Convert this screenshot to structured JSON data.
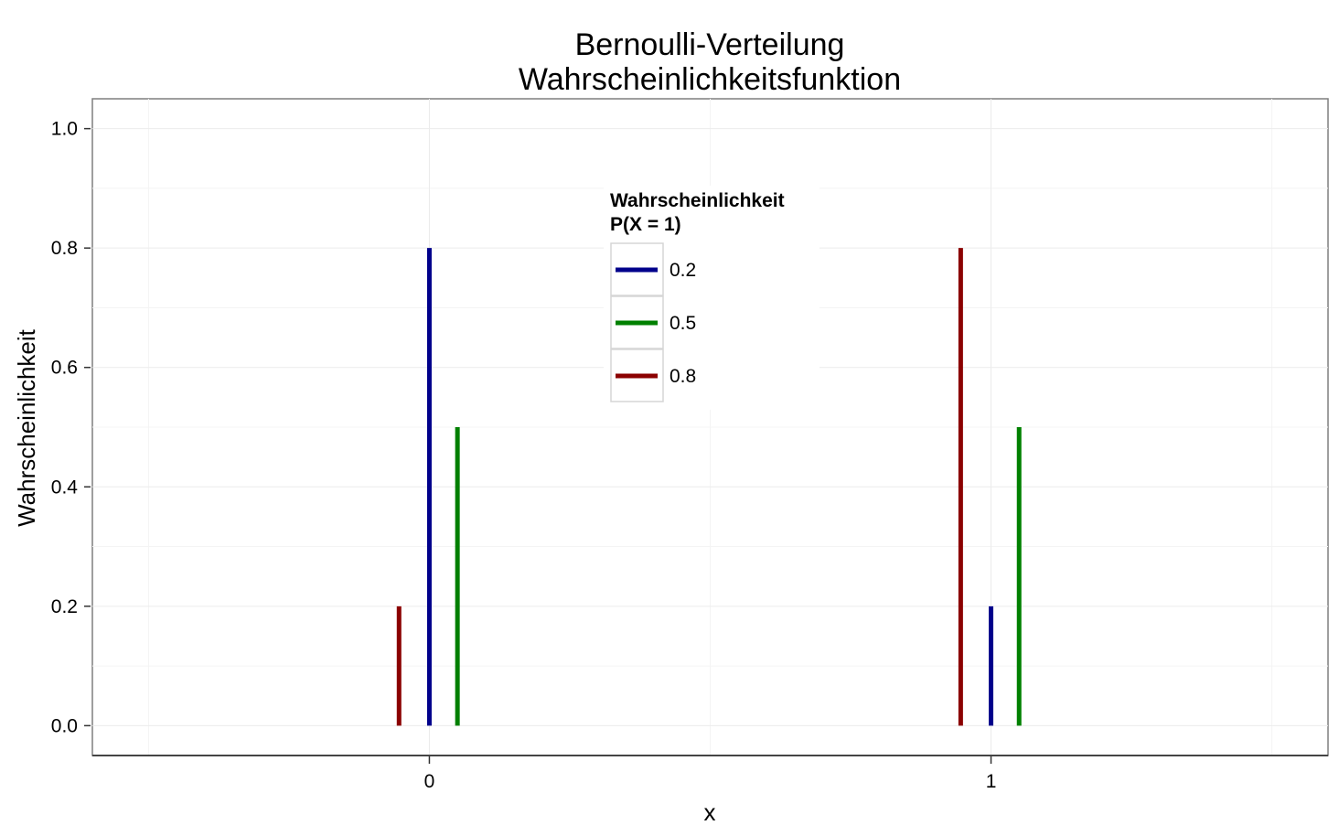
{
  "chart_data": {
    "type": "bar",
    "title": "Bernoulli-Verteilung",
    "subtitle": "Wahrscheinlichkeitsfunktion",
    "xlabel": "x",
    "ylabel": "Wahrscheinlichkeit",
    "xlim": [
      -0.6,
      1.6
    ],
    "ylim": [
      -0.05,
      1.05
    ],
    "x_ticks": [
      "0",
      "1"
    ],
    "x_tick_values": [
      0,
      1
    ],
    "y_ticks": [
      "0.0",
      "0.2",
      "0.4",
      "0.6",
      "0.8",
      "1.0"
    ],
    "y_tick_values": [
      0,
      0.2,
      0.4,
      0.6,
      0.8,
      1.0
    ],
    "grid": true,
    "legend": {
      "title_line1": "Wahrscheinlichkeit",
      "title_line2": "P(X = 1)",
      "placement": "top-center"
    },
    "series": [
      {
        "name": "0.2",
        "color": "#00008B",
        "x": [
          0,
          1
        ],
        "values": [
          0.8,
          0.2
        ]
      },
      {
        "name": "0.5",
        "color": "#008000",
        "x": [
          0,
          1
        ],
        "values": [
          0.5,
          0.5
        ]
      },
      {
        "name": "0.8",
        "color": "#8B0000",
        "x": [
          0,
          1
        ],
        "values": [
          0.2,
          0.8
        ]
      }
    ]
  }
}
